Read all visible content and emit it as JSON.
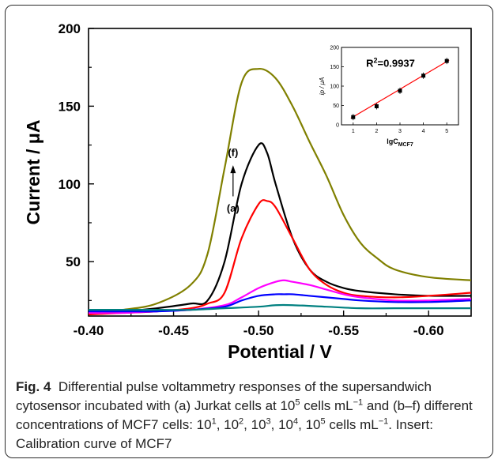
{
  "chart_data": [
    {
      "type": "line",
      "xlabel": "Potential / V",
      "ylabel": "Current / μA",
      "xlim": [
        -0.4,
        -0.625
      ],
      "ylim": [
        15,
        200
      ],
      "xticks": [
        -0.4,
        -0.45,
        -0.5,
        -0.55,
        -0.6
      ],
      "xtick_labels": [
        "-0.40",
        "-0.45",
        "-0.50",
        "-0.55",
        "-0.60"
      ],
      "yticks": [
        50,
        100,
        150,
        200
      ],
      "ytick_labels": [
        "50",
        "100",
        "150",
        "200"
      ],
      "grid": false,
      "annotations": {
        "top_label": "(f)",
        "bottom_label": "(a)"
      },
      "series": [
        {
          "color": "#808000",
          "x": [
            -0.4,
            -0.42,
            -0.44,
            -0.46,
            -0.47,
            -0.48,
            -0.49,
            -0.5,
            -0.51,
            -0.52,
            -0.53,
            -0.54,
            -0.55,
            -0.56,
            -0.57,
            -0.58,
            -0.6,
            -0.625
          ],
          "y": [
            17,
            19,
            23,
            35,
            55,
            110,
            165,
            174,
            168,
            150,
            127,
            105,
            80,
            62,
            52,
            45,
            40,
            38
          ]
        },
        {
          "color": "#000000",
          "x": [
            -0.4,
            -0.42,
            -0.44,
            -0.46,
            -0.47,
            -0.48,
            -0.49,
            -0.5,
            -0.505,
            -0.51,
            -0.52,
            -0.53,
            -0.54,
            -0.55,
            -0.56,
            -0.58,
            -0.6,
            -0.625
          ],
          "y": [
            17,
            18,
            20,
            23,
            25,
            50,
            100,
            125,
            120,
            100,
            65,
            45,
            37,
            33,
            31,
            29,
            28,
            28
          ]
        },
        {
          "color": "#ff0000",
          "x": [
            -0.4,
            -0.42,
            -0.44,
            -0.46,
            -0.47,
            -0.48,
            -0.49,
            -0.5,
            -0.505,
            -0.51,
            -0.52,
            -0.53,
            -0.54,
            -0.55,
            -0.56,
            -0.58,
            -0.6,
            -0.625
          ],
          "y": [
            16,
            17,
            18,
            20,
            23,
            30,
            65,
            87,
            89,
            85,
            65,
            45,
            35,
            30,
            28,
            27,
            28,
            30
          ]
        },
        {
          "color": "#ff00ff",
          "x": [
            -0.4,
            -0.42,
            -0.44,
            -0.46,
            -0.48,
            -0.49,
            -0.5,
            -0.51,
            -0.515,
            -0.52,
            -0.53,
            -0.54,
            -0.55,
            -0.56,
            -0.58,
            -0.6,
            -0.625
          ],
          "y": [
            17,
            17,
            18,
            19,
            22,
            27,
            33,
            37,
            38,
            37,
            35,
            32,
            29,
            27,
            25,
            25,
            26
          ]
        },
        {
          "color": "#0000ff",
          "x": [
            -0.4,
            -0.42,
            -0.44,
            -0.46,
            -0.48,
            -0.49,
            -0.5,
            -0.51,
            -0.515,
            -0.52,
            -0.53,
            -0.54,
            -0.55,
            -0.56,
            -0.58,
            -0.6,
            -0.625
          ],
          "y": [
            18,
            18,
            18,
            19,
            21,
            25,
            28,
            29,
            29,
            29,
            28,
            27,
            26,
            25,
            24,
            24,
            25
          ]
        },
        {
          "color": "#008080",
          "x": [
            -0.4,
            -0.42,
            -0.44,
            -0.46,
            -0.48,
            -0.5,
            -0.51,
            -0.52,
            -0.54,
            -0.56,
            -0.58,
            -0.6,
            -0.625
          ],
          "y": [
            19,
            19,
            19,
            19,
            20,
            21,
            22,
            22,
            21,
            20,
            20,
            20,
            20
          ]
        }
      ]
    },
    {
      "type": "scatter",
      "role": "inset",
      "xlabel": "lgC",
      "xlabel_subscript": "MCF7",
      "ylabel": "ip / μA",
      "xlim": [
        0.5,
        5.5
      ],
      "ylim": [
        0,
        200
      ],
      "xticks": [
        1,
        2,
        3,
        4,
        5
      ],
      "yticks": [
        0,
        50,
        100,
        150,
        200
      ],
      "annotation": "R²=0.9937",
      "fit_color": "#ff0000",
      "x": [
        1,
        2,
        3,
        4,
        5
      ],
      "y": [
        20,
        48,
        88,
        127,
        165
      ],
      "fit": {
        "x": [
          0.9,
          5.1
        ],
        "y": [
          17,
          167
        ]
      }
    }
  ],
  "caption": {
    "label": "Fig. 4",
    "t1": "Differential pulse voltammetry responses of the supersandwich cytosensor incubated with (a) Jurkat cells at 10",
    "s1": "5",
    "t2": " cells mL",
    "s2": "−1",
    "t3": " and (b–f) different concentrations of MCF7 cells: 10",
    "s3": "1",
    "t4": ", 10",
    "s4": "2",
    "t5": ", 10",
    "s5": "3",
    "t6": ", 10",
    "s6": "4",
    "t7": ", 10",
    "s7": "5",
    "t8": " cells mL",
    "s8": "−1",
    "t9": ". Insert: Calibration curve of MCF7"
  }
}
